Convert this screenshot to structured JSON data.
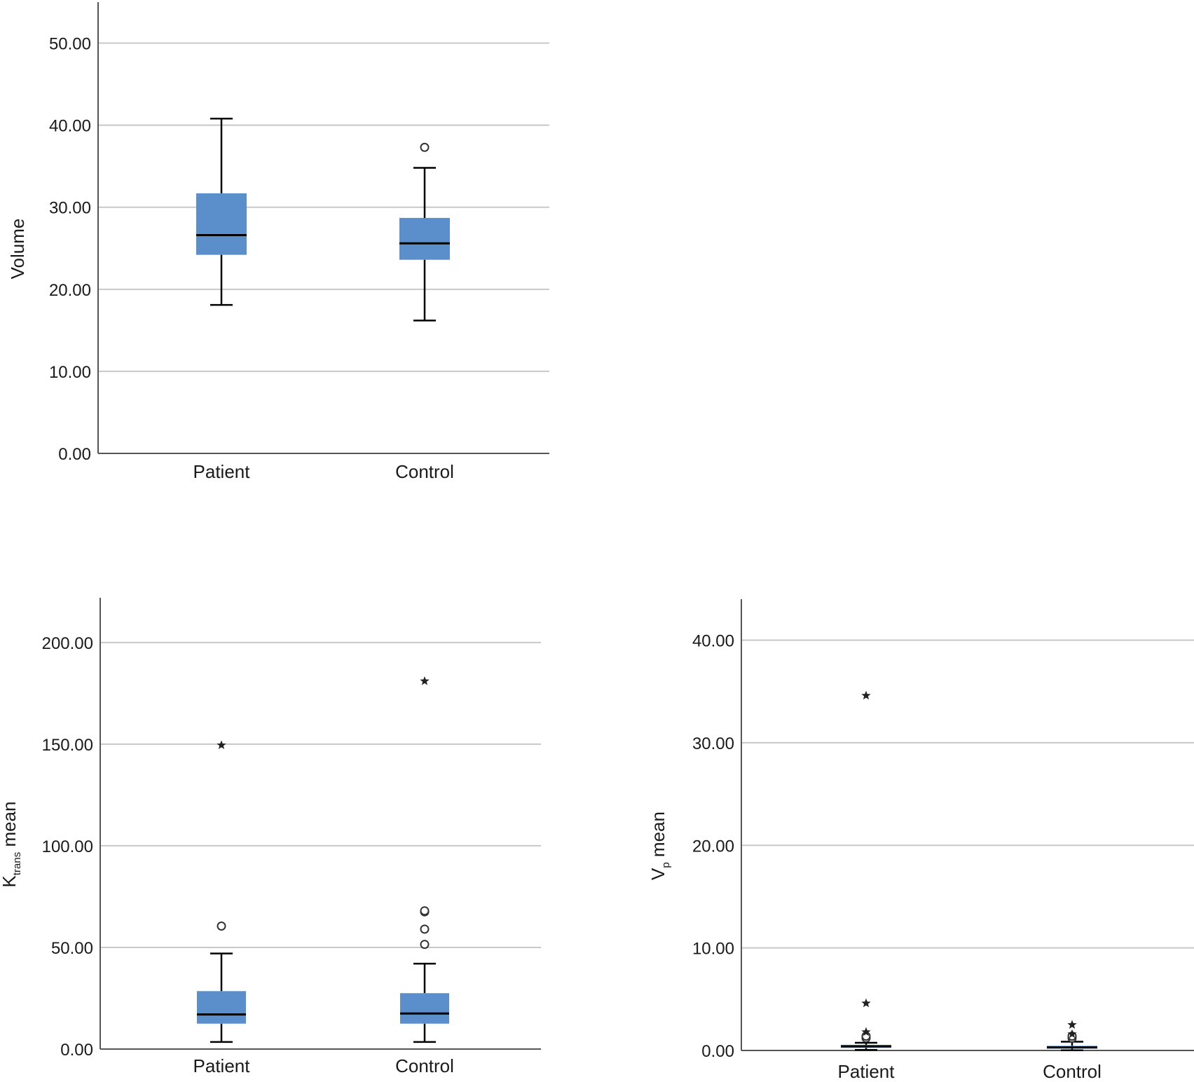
{
  "figure": {
    "colors": {
      "box_fill": "#5b8fcc",
      "median": "#000000",
      "grid": "#c8c8c8",
      "axis": "#555555"
    }
  },
  "chart_data": [
    {
      "type": "box",
      "ylabel": "Volume",
      "ylim": [
        0,
        55
      ],
      "yticks": [
        0,
        10,
        20,
        30,
        40,
        50
      ],
      "tick_labels": [
        "0.00",
        "10.00",
        "20.00",
        "30.00",
        "40.00",
        "50.00"
      ],
      "categories": [
        "Patient",
        "Control"
      ],
      "boxes": [
        {
          "category": "Patient",
          "whisker_low": 18.1,
          "q1": 24.2,
          "median": 26.6,
          "q3": 31.7,
          "whisker_high": 40.8,
          "outliers": [],
          "extremes": []
        },
        {
          "category": "Control",
          "whisker_low": 16.2,
          "q1": 23.6,
          "median": 25.6,
          "q3": 28.7,
          "whisker_high": 34.8,
          "outliers": [
            37.3
          ],
          "extremes": []
        }
      ],
      "grid": true
    },
    {
      "type": "box",
      "ylabel": "K",
      "ylabel_sub": "trans",
      "ylabel_rest": " mean",
      "ylim": [
        0,
        222
      ],
      "yticks": [
        0,
        50,
        100,
        150,
        200
      ],
      "tick_labels": [
        "0.00",
        "50.00",
        "100.00",
        "150.00",
        "200.00"
      ],
      "categories": [
        "Patient",
        "Control"
      ],
      "boxes": [
        {
          "category": "Patient",
          "whisker_low": 3.5,
          "q1": 12.5,
          "median": 17.0,
          "q3": 28.5,
          "whisker_high": 47.0,
          "outliers": [
            60.5
          ],
          "extremes": [
            149.5
          ]
        },
        {
          "category": "Control",
          "whisker_low": 3.5,
          "q1": 12.5,
          "median": 17.5,
          "q3": 27.5,
          "whisker_high": 42.0,
          "outliers": [
            51.5,
            59.0,
            67.5,
            68.0
          ],
          "extremes": [
            181.0
          ]
        }
      ],
      "grid": true
    },
    {
      "type": "box",
      "ylabel": "V",
      "ylabel_sub": "p",
      "ylabel_rest": " mean",
      "ylim": [
        0,
        44
      ],
      "yticks": [
        0,
        10,
        20,
        30,
        40
      ],
      "tick_labels": [
        "0.00",
        "10.00",
        "20.00",
        "30.00",
        "40.00"
      ],
      "categories": [
        "Patient",
        "Control"
      ],
      "boxes": [
        {
          "category": "Patient",
          "whisker_low": 0.05,
          "q1": 0.25,
          "median": 0.4,
          "q3": 0.55,
          "whisker_high": 0.75,
          "outliers": [
            1.2,
            1.4
          ],
          "extremes": [
            1.8,
            4.6,
            34.6
          ]
        },
        {
          "category": "Control",
          "whisker_low": 0.02,
          "q1": 0.18,
          "median": 0.3,
          "q3": 0.45,
          "whisker_high": 0.85,
          "outliers": [
            1.2,
            1.4
          ],
          "extremes": [
            1.6,
            2.5
          ]
        }
      ],
      "grid": true
    }
  ]
}
